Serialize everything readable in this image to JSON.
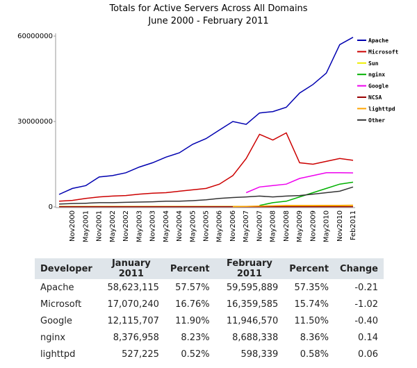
{
  "chart_data": {
    "type": "line",
    "title": "Totals for Active Servers Across All Domains",
    "subtitle": "June 2000 - February 2011",
    "categories": [
      null,
      "Nov2000",
      "May2001",
      "Nov2001",
      "May2002",
      "Nov2002",
      "May2003",
      "Nov2003",
      "May2004",
      "Nov2004",
      "May2005",
      "Nov2005",
      "May2006",
      "Nov2006",
      "May2007",
      "Nov2007",
      "May2008",
      "Nov2008",
      "May2009",
      "Nov2009",
      "May2010",
      "Nov2010",
      "Feb2011"
    ],
    "ylim": [
      0,
      60000000
    ],
    "yticks": [
      0,
      30000000,
      60000000
    ],
    "legend": "right",
    "series": [
      {
        "name": "Apache",
        "color": "#0000b0",
        "values": [
          4400000,
          6500000,
          7500000,
          10500000,
          11000000,
          12000000,
          14000000,
          15500000,
          17500000,
          19000000,
          22000000,
          24000000,
          27000000,
          30000000,
          29000000,
          33000000,
          33500000,
          35000000,
          40000000,
          43000000,
          47000000,
          57000000,
          59595889
        ]
      },
      {
        "name": "Microsoft",
        "color": "#cc0000",
        "values": [
          2000000,
          2300000,
          3000000,
          3500000,
          3800000,
          4000000,
          4500000,
          4800000,
          5000000,
          5500000,
          6000000,
          6500000,
          8000000,
          11000000,
          17000000,
          25500000,
          23500000,
          26000000,
          15500000,
          15000000,
          16000000,
          17000000,
          16359585
        ]
      },
      {
        "name": "Sun",
        "color": "#eeee00",
        "values": [
          200000,
          200000,
          200000,
          200000,
          200000,
          200000,
          200000,
          200000,
          200000,
          200000,
          200000,
          200000,
          200000,
          200000,
          200000,
          200000,
          200000,
          200000,
          200000,
          200000,
          200000,
          200000,
          200000
        ]
      },
      {
        "name": "nginx",
        "color": "#00b000",
        "values": [
          null,
          null,
          null,
          null,
          null,
          null,
          null,
          null,
          null,
          null,
          null,
          null,
          null,
          null,
          null,
          500000,
          1500000,
          2000000,
          3500000,
          5000000,
          6500000,
          8000000,
          8688338
        ]
      },
      {
        "name": "Google",
        "color": "#ee00ee",
        "values": [
          null,
          null,
          null,
          null,
          null,
          null,
          null,
          null,
          null,
          null,
          null,
          null,
          null,
          null,
          5000000,
          7000000,
          7500000,
          8000000,
          10000000,
          11000000,
          12000000,
          12000000,
          11946570
        ]
      },
      {
        "name": "NCSA",
        "color": "#990000",
        "values": [
          100000,
          100000,
          100000,
          100000,
          100000,
          100000,
          100000,
          100000,
          100000,
          100000,
          100000,
          100000,
          100000,
          100000,
          100000,
          100000,
          100000,
          100000,
          100000,
          100000,
          100000,
          100000,
          100000
        ]
      },
      {
        "name": "lighttpd",
        "color": "#ffa500",
        "values": [
          null,
          null,
          null,
          null,
          null,
          null,
          null,
          null,
          null,
          null,
          null,
          null,
          null,
          100000,
          200000,
          300000,
          400000,
          500000,
          500000,
          500000,
          550000,
          550000,
          598339
        ]
      },
      {
        "name": "Other",
        "color": "#333333",
        "values": [
          1000000,
          1200000,
          1300000,
          1500000,
          1500000,
          1600000,
          1700000,
          1800000,
          2000000,
          2000000,
          2200000,
          2500000,
          3000000,
          3300000,
          3500000,
          3800000,
          3500000,
          3800000,
          4000000,
          4500000,
          5000000,
          5500000,
          7000000
        ]
      }
    ]
  },
  "table": {
    "columns": [
      "Developer",
      "January 2011",
      "Percent",
      "February 2011",
      "Percent",
      "Change"
    ],
    "rows": [
      [
        "Apache",
        "58,623,115",
        "57.57%",
        "59,595,889",
        "57.35%",
        "-0.21"
      ],
      [
        "Microsoft",
        "17,070,240",
        "16.76%",
        "16,359,585",
        "15.74%",
        "-1.02"
      ],
      [
        "Google",
        "12,115,707",
        "11.90%",
        "11,946,570",
        "11.50%",
        "-0.40"
      ],
      [
        "nginx",
        "8,376,958",
        "8.23%",
        "8,688,338",
        "8.36%",
        "0.14"
      ],
      [
        "lighttpd",
        "527,225",
        "0.52%",
        "598,339",
        "0.58%",
        "0.06"
      ]
    ]
  }
}
